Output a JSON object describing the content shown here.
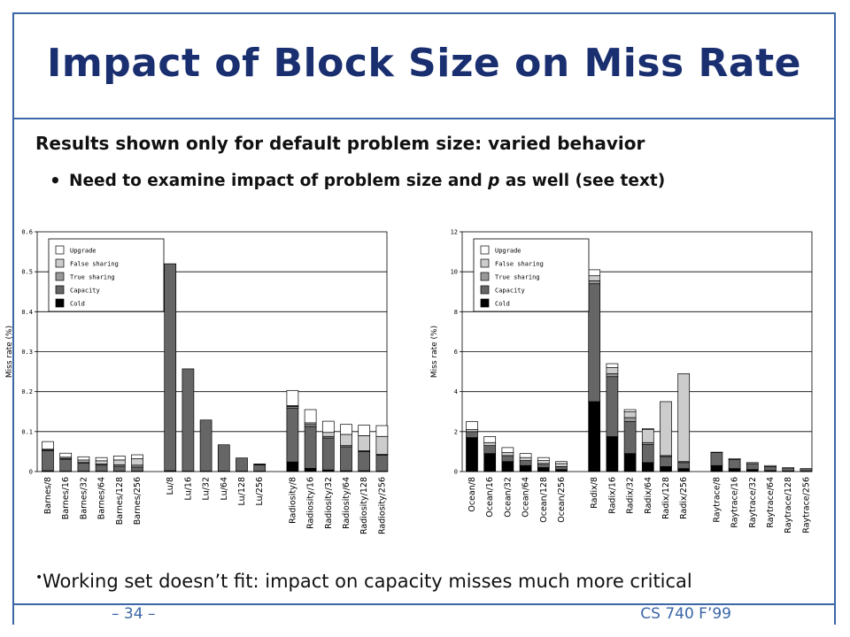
{
  "slide": {
    "title": "Impact of Block Size on Miss Rate",
    "bullet_main": "Results shown only for default problem size: varied behavior",
    "bullet_sub_1": "Need to examine impact of problem size and ",
    "bullet_sub_p": "p",
    "bullet_sub_2": " as well (see text)",
    "bullet_bottom": "Working set doesn’t fit: impact on capacity misses much more critical",
    "footer_left": "– 34 –",
    "footer_right": "CS 740 F’99",
    "accent_color": "#3b66a7",
    "title_color": "#1a2f70"
  },
  "chart_data": [
    {
      "type": "bar",
      "stacked": true,
      "ylabel": "Miss rate (%)",
      "ylim": [
        0,
        0.6
      ],
      "yticks": [
        "0",
        "0.1",
        "0.2",
        "0.3",
        "0.4",
        "0.5",
        "0.6"
      ],
      "grid": true,
      "legend_position": "top-left",
      "legend": [
        "Upgrade",
        "False sharing",
        "True sharing",
        "Capacity",
        "Cold"
      ],
      "categories": [
        "Barnes/8",
        "Barnes/16",
        "Barnes/32",
        "Barnes/64",
        "Barnes/128",
        "Barnes/256",
        "Lu/8",
        "Lu/16",
        "Lu/32",
        "Lu/64",
        "Lu/128",
        "Lu/256",
        "Radiosity/8",
        "Radiosity/16",
        "Radiosity/32",
        "Radiosity/64",
        "Radiosity/128",
        "Radiosity/256"
      ],
      "groups": [
        6,
        6,
        6
      ],
      "series": [
        {
          "name": "Cold",
          "values": [
            0.002,
            0.001,
            0.001,
            0.001,
            0.001,
            0.001,
            0.002,
            0.001,
            0.001,
            0.001,
            0.001,
            0.001,
            0.024,
            0.008,
            0.004,
            0.002,
            0.002,
            0.001
          ]
        },
        {
          "name": "Capacity",
          "values": [
            0.05,
            0.03,
            0.02,
            0.015,
            0.012,
            0.01,
            0.518,
            0.256,
            0.128,
            0.066,
            0.033,
            0.016,
            0.135,
            0.105,
            0.08,
            0.06,
            0.048,
            0.04
          ]
        },
        {
          "name": "True sharing",
          "values": [
            0.002,
            0.002,
            0.003,
            0.003,
            0.004,
            0.005,
            0.0,
            0.0,
            0.0,
            0.0,
            0.0,
            0.001,
            0.004,
            0.005,
            0.004,
            0.003,
            0.002,
            0.002
          ]
        },
        {
          "name": "False sharing",
          "values": [
            0.002,
            0.003,
            0.005,
            0.008,
            0.012,
            0.016,
            0.0,
            0.0,
            0.0,
            0.0,
            0.0,
            0.001,
            0.002,
            0.004,
            0.01,
            0.028,
            0.038,
            0.045
          ]
        },
        {
          "name": "Upgrade",
          "values": [
            0.019,
            0.01,
            0.008,
            0.008,
            0.01,
            0.01,
            0.0,
            0.0,
            0.0,
            0.0,
            0.0,
            0.0,
            0.038,
            0.033,
            0.028,
            0.025,
            0.026,
            0.027
          ]
        }
      ]
    },
    {
      "type": "bar",
      "stacked": true,
      "ylabel": "Miss rate (%)",
      "ylim": [
        0,
        12
      ],
      "yticks": [
        "0",
        "2",
        "4",
        "6",
        "8",
        "10",
        "12"
      ],
      "grid": true,
      "legend_position": "top-left",
      "legend": [
        "Upgrade",
        "False sharing",
        "True sharing",
        "Capacity",
        "Cold"
      ],
      "categories": [
        "Ocean/8",
        "Ocean/16",
        "Ocean/32",
        "Ocean/64",
        "Ocean/128",
        "Ocean/256",
        "Radix/8",
        "Radix/16",
        "Radix/32",
        "Radix/64",
        "Radix/128",
        "Radix/256",
        "Raytrace/8",
        "Raytrace/16",
        "Raytrace/32",
        "Raytrace/64",
        "Raytrace/128",
        "Raytrace/256"
      ],
      "groups": [
        6,
        6,
        6
      ],
      "series": [
        {
          "name": "Cold",
          "values": [
            1.7,
            0.9,
            0.5,
            0.3,
            0.2,
            0.1,
            3.5,
            1.75,
            0.9,
            0.45,
            0.25,
            0.15,
            0.3,
            0.15,
            0.1,
            0.05,
            0.03,
            0.02
          ]
        },
        {
          "name": "Capacity",
          "values": [
            0.3,
            0.4,
            0.3,
            0.25,
            0.2,
            0.15,
            5.9,
            3.0,
            1.6,
            0.9,
            0.5,
            0.3,
            0.65,
            0.45,
            0.3,
            0.2,
            0.12,
            0.08
          ]
        },
        {
          "name": "True sharing",
          "values": [
            0.0,
            0.0,
            0.0,
            0.0,
            0.0,
            0.0,
            0.15,
            0.15,
            0.2,
            0.1,
            0.05,
            0.05,
            0.0,
            0.0,
            0.0,
            0.0,
            0.0,
            0.0
          ]
        },
        {
          "name": "False sharing",
          "values": [
            0.1,
            0.15,
            0.15,
            0.15,
            0.15,
            0.15,
            0.25,
            0.3,
            0.3,
            0.65,
            2.7,
            4.4,
            0.0,
            0.0,
            0.0,
            0.0,
            0.0,
            0.0
          ]
        },
        {
          "name": "Upgrade",
          "values": [
            0.4,
            0.3,
            0.25,
            0.2,
            0.15,
            0.1,
            0.3,
            0.2,
            0.1,
            0.05,
            0.0,
            0.0,
            0.02,
            0.05,
            0.05,
            0.05,
            0.05,
            0.05
          ]
        }
      ]
    }
  ]
}
